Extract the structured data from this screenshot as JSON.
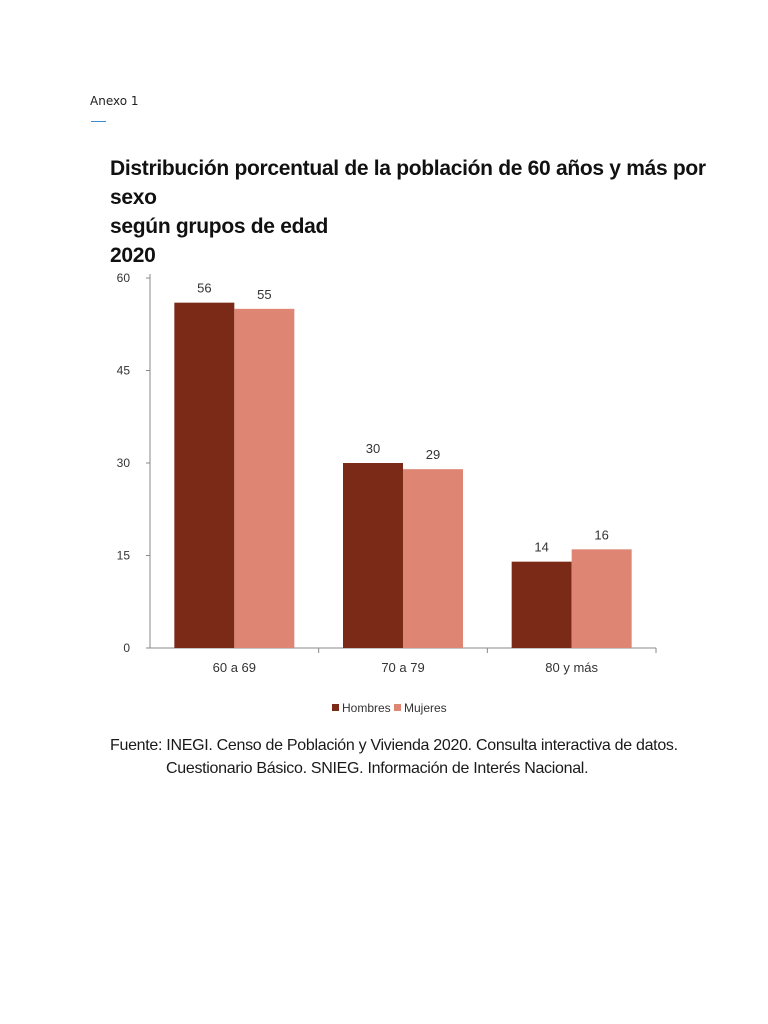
{
  "document": {
    "annex_label": "Anexo 1"
  },
  "chart_data": {
    "type": "bar",
    "title_lines": [
      "Distribución porcentual de la población de 60 años y más por sexo",
      "según grupos de edad",
      "2020"
    ],
    "categories": [
      "60 a 69",
      "70 a 79",
      "80 y más"
    ],
    "series": [
      {
        "name": "Hombres",
        "values": [
          56,
          30,
          14
        ],
        "color": "#7a2a17"
      },
      {
        "name": "Mujeres",
        "values": [
          55,
          29,
          16
        ],
        "color": "#de8673"
      }
    ],
    "ylim": [
      0,
      60
    ],
    "yticks": [
      "0",
      "15",
      "30",
      "45",
      "60"
    ],
    "xlabel": "",
    "ylabel": "",
    "grid": false,
    "legend_position": "bottom-center",
    "data_labels": true
  },
  "source": {
    "line1": "Fuente: INEGI. Censo de Población y Vivienda 2020. Consulta interactiva de datos.",
    "line2": "Cuestionario Básico. SNIEG. Información de Interés Nacional."
  }
}
